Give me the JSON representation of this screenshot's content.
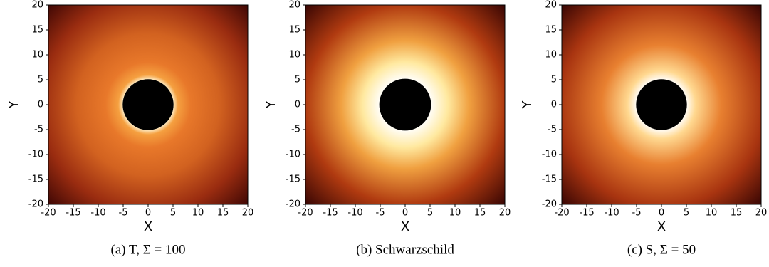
{
  "chart_data": [
    {
      "type": "image",
      "caption": "(a) T, Σ = 100",
      "xlabel": "X",
      "ylabel": "Y",
      "xlim": [
        -20,
        20
      ],
      "ylim": [
        -20,
        20
      ],
      "xticks": [
        -20,
        -15,
        -10,
        -5,
        0,
        5,
        10,
        15,
        20
      ],
      "yticks": [
        -20,
        -15,
        -10,
        -5,
        0,
        5,
        10,
        15,
        20
      ],
      "shadow_radius": 5.1
    },
    {
      "type": "image",
      "caption": "(b) Schwarzschild",
      "xlabel": "X",
      "ylabel": "Y",
      "xlim": [
        -20,
        20
      ],
      "ylim": [
        -20,
        20
      ],
      "xticks": [
        -20,
        -15,
        -10,
        -5,
        0,
        5,
        10,
        15,
        20
      ],
      "yticks": [
        -20,
        -15,
        -10,
        -5,
        0,
        5,
        10,
        15,
        20
      ],
      "shadow_radius": 5.2
    },
    {
      "type": "image",
      "caption": "(c) S, Σ = 50",
      "xlabel": "X",
      "ylabel": "Y",
      "xlim": [
        -20,
        20
      ],
      "ylim": [
        -20,
        20
      ],
      "xticks": [
        -20,
        -15,
        -10,
        -5,
        0,
        5,
        10,
        15,
        20
      ],
      "yticks": [
        -20,
        -15,
        -10,
        -5,
        0,
        5,
        10,
        15,
        20
      ],
      "shadow_radius": 5.1
    }
  ]
}
